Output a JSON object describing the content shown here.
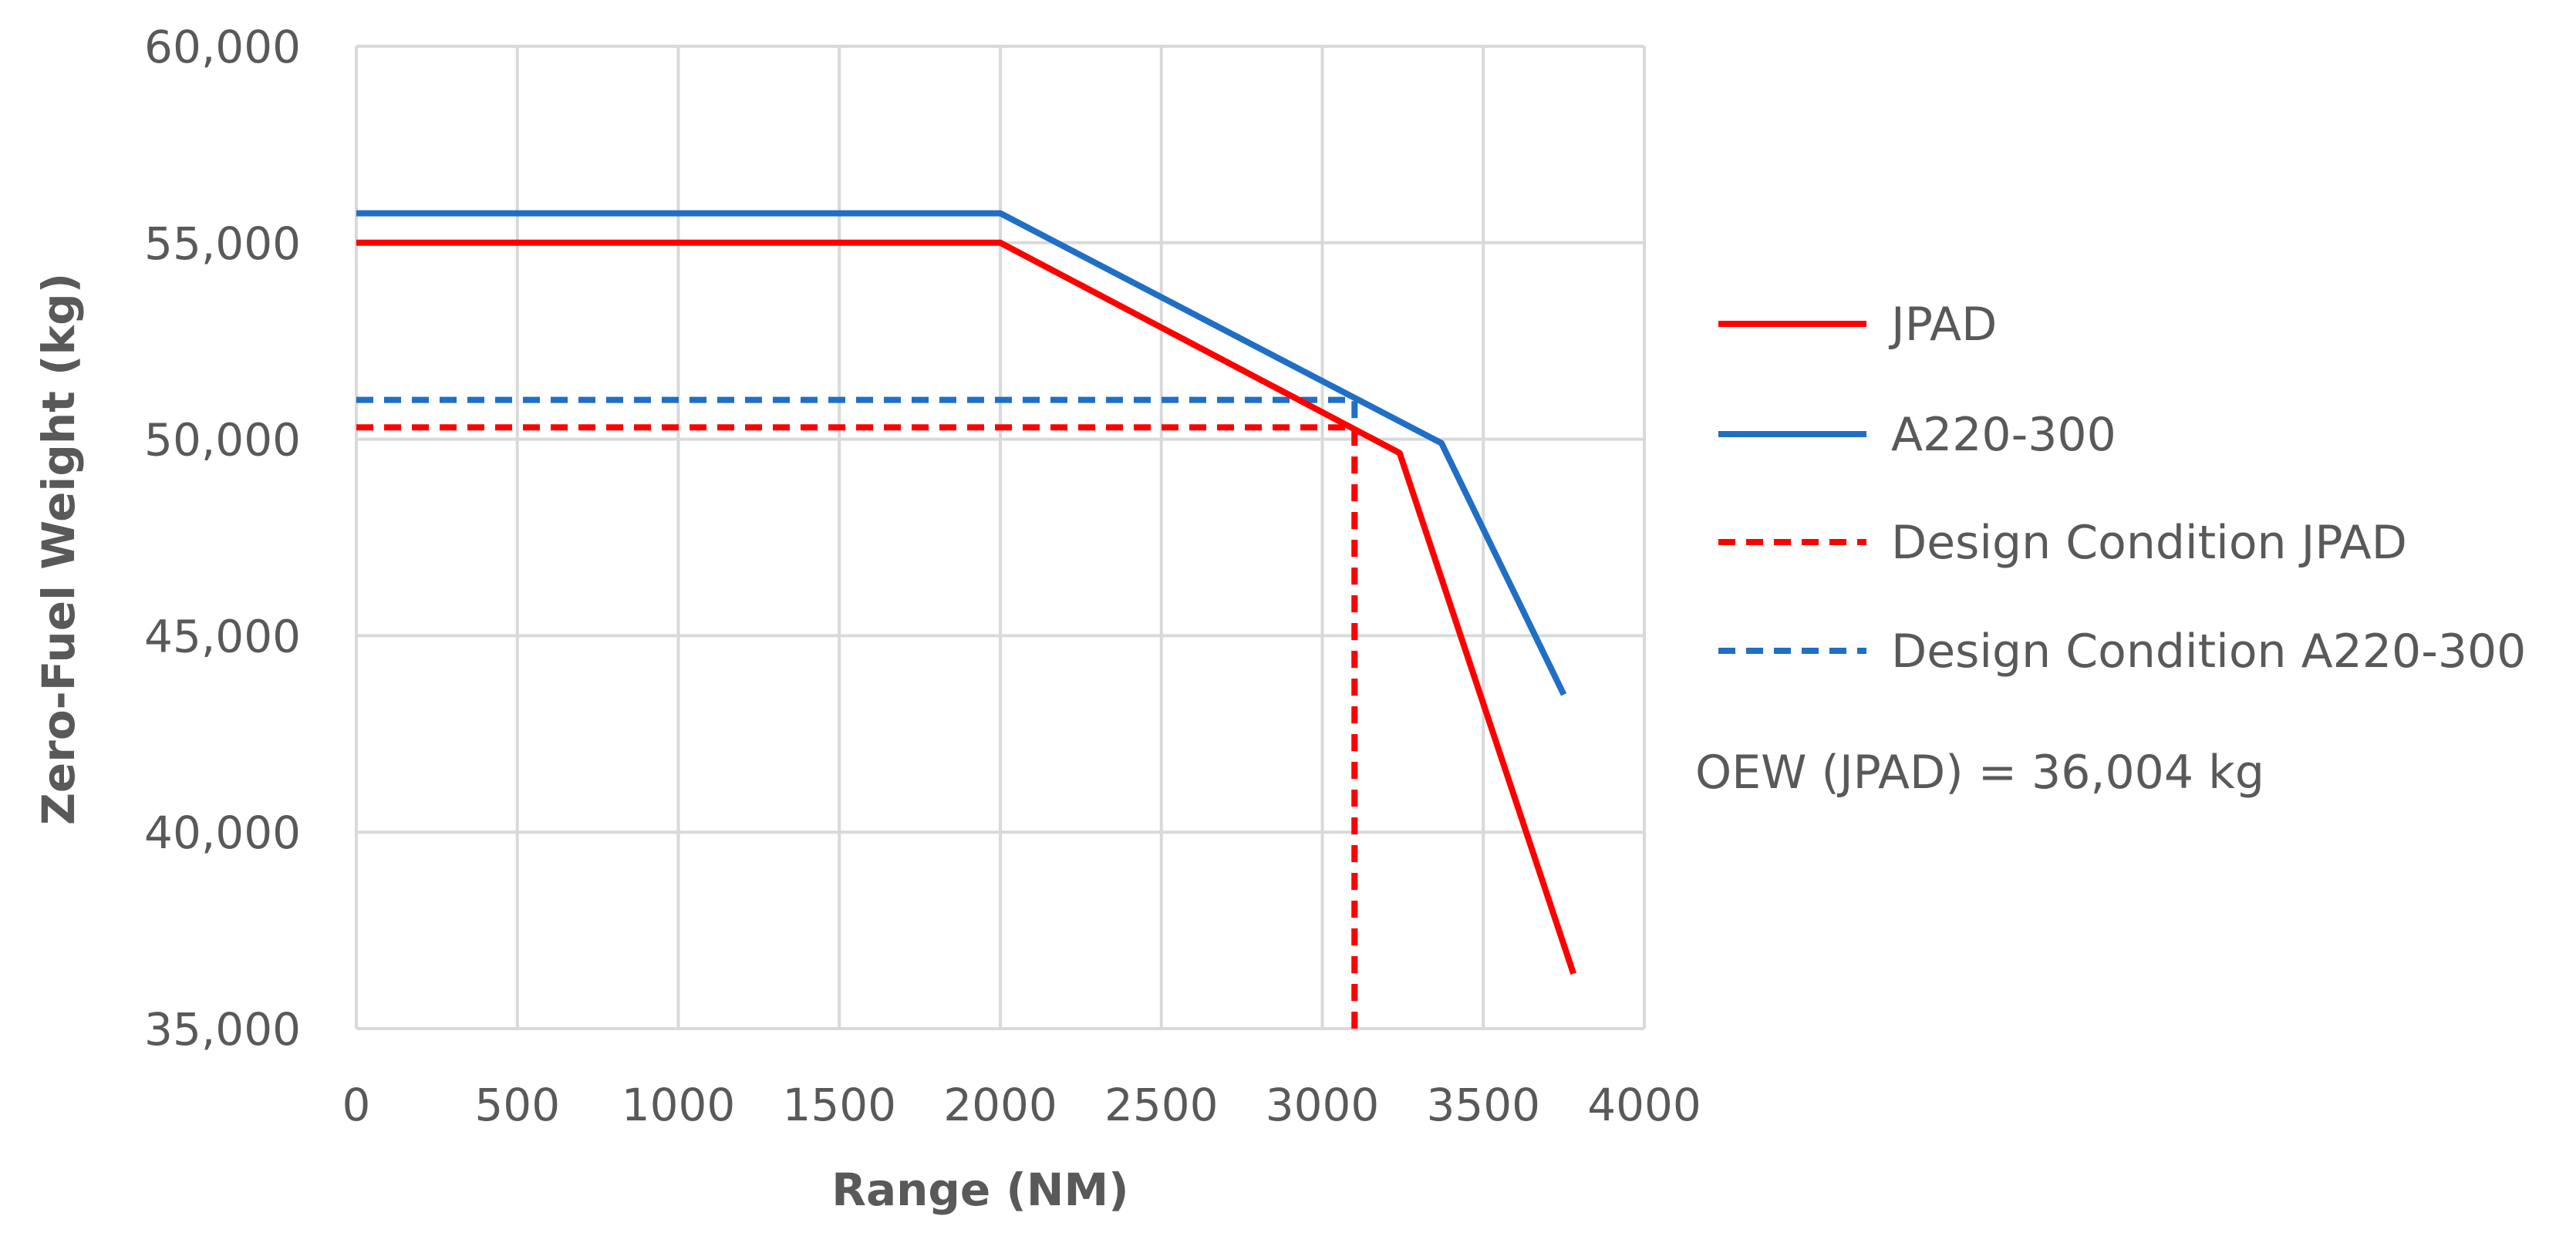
{
  "chart_data": {
    "type": "line",
    "title": "",
    "xlabel": "Range (NM)",
    "ylabel": "Zero-Fuel Weight (kg)",
    "xlim": [
      0,
      4000
    ],
    "ylim": [
      35000,
      60000
    ],
    "x_ticks": [
      0,
      500,
      1000,
      1500,
      2000,
      2500,
      3000,
      3500,
      4000
    ],
    "x_tick_labels": [
      "0",
      "500",
      "1000",
      "1500",
      "2000",
      "2500",
      "3000",
      "3500",
      "4000"
    ],
    "y_ticks": [
      35000,
      40000,
      45000,
      50000,
      55000,
      60000
    ],
    "y_tick_labels": [
      "35,000",
      "40,000",
      "45,000",
      "50,000",
      "55,000",
      "60,000"
    ],
    "grid": true,
    "legend_position": "right",
    "series": [
      {
        "name": "JPAD",
        "color": "#ff0000",
        "dash": "solid",
        "x": [
          0,
          2000,
          3240,
          3780
        ],
        "y": [
          55000,
          55000,
          49650,
          36400
        ]
      },
      {
        "name": "A220-300",
        "color": "#1f6fc5",
        "dash": "solid",
        "x": [
          0,
          2000,
          3370,
          3750
        ],
        "y": [
          55750,
          55750,
          49900,
          43500
        ]
      },
      {
        "name": "Design Condition JPAD",
        "color": "#ff0000",
        "dash": "dashed",
        "x": [
          0,
          3100,
          3100
        ],
        "y": [
          50300,
          50300,
          35000
        ]
      },
      {
        "name": "Design Condition A220-300",
        "color": "#1f6fc5",
        "dash": "dashed",
        "x": [
          0,
          3100,
          3100
        ],
        "y": [
          51000,
          51000,
          35000
        ]
      }
    ],
    "annotations": [
      "OEW (JPAD) = 36,004 kg"
    ]
  }
}
